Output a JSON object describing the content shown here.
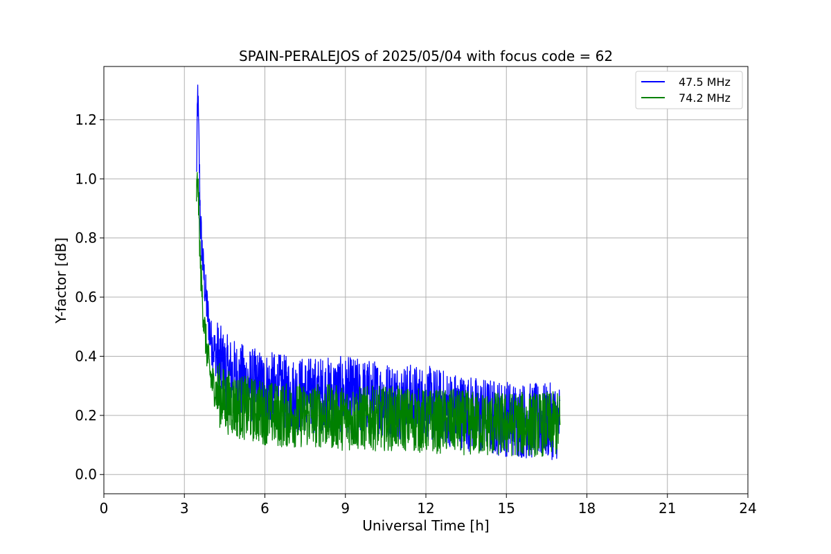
{
  "chart_data": {
    "type": "line",
    "title": "SPAIN-PERALEJOS of 2025/05/04 with focus code = 62",
    "xlabel": "Universal Time [h]",
    "ylabel": "Y-factor [dB]",
    "xlim": [
      0,
      24
    ],
    "ylim": [
      -0.065,
      1.38
    ],
    "x_ticks": [
      0,
      3,
      6,
      9,
      12,
      15,
      18,
      21,
      24
    ],
    "x_tick_labels": [
      "0",
      "3",
      "6",
      "9",
      "12",
      "15",
      "18",
      "21",
      "24"
    ],
    "y_ticks": [
      0.0,
      0.2,
      0.4,
      0.6,
      0.8,
      1.0,
      1.2
    ],
    "y_tick_labels": [
      "0.0",
      "0.2",
      "0.4",
      "0.6",
      "0.8",
      "1.0",
      "1.2"
    ],
    "grid": true,
    "legend_position": "top-right",
    "series": [
      {
        "name": "47.5 MHz",
        "color": "#0000ff",
        "x": [
          3.45,
          3.5,
          3.6,
          3.7,
          3.8,
          3.9,
          4.0,
          4.2,
          4.5,
          5.0,
          5.5,
          6.0,
          6.5,
          7.0,
          8.0,
          9.0,
          10.0,
          11.0,
          12.0,
          13.0,
          14.0,
          15.0,
          16.0,
          17.0
        ],
        "y": [
          1.0,
          1.3,
          0.85,
          0.7,
          0.6,
          0.52,
          0.45,
          0.4,
          0.35,
          0.32,
          0.3,
          0.29,
          0.28,
          0.27,
          0.27,
          0.27,
          0.26,
          0.25,
          0.24,
          0.22,
          0.2,
          0.19,
          0.18,
          0.18
        ]
      },
      {
        "name": "74.2 MHz",
        "color": "#008000",
        "x": [
          3.45,
          3.5,
          3.6,
          3.7,
          3.8,
          3.9,
          4.0,
          4.2,
          4.5,
          5.0,
          5.5,
          6.0,
          6.5,
          7.0,
          8.0,
          9.0,
          10.0,
          11.0,
          12.0,
          13.0,
          14.0,
          15.0,
          16.0,
          17.0
        ],
        "y": [
          0.95,
          1.0,
          0.7,
          0.55,
          0.45,
          0.38,
          0.32,
          0.28,
          0.25,
          0.23,
          0.22,
          0.21,
          0.2,
          0.2,
          0.2,
          0.19,
          0.19,
          0.19,
          0.18,
          0.18,
          0.17,
          0.17,
          0.17,
          0.17
        ]
      }
    ]
  }
}
